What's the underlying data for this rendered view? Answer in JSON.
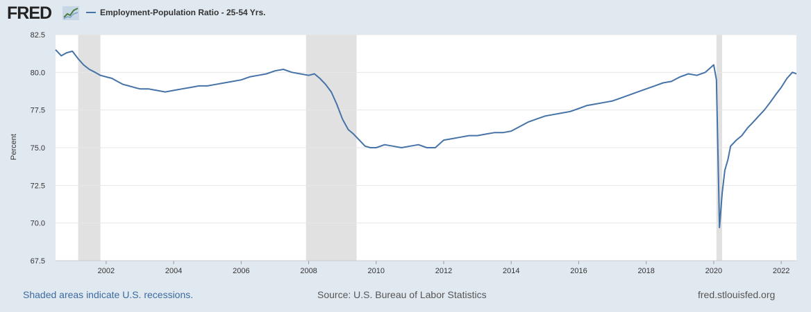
{
  "header": {
    "logo_text": "FRED",
    "logo_icon": "fred-chart-icon",
    "series_label": "Employment-Population Ratio - 25-54 Yrs."
  },
  "footer": {
    "note": "Shaded areas indicate U.S. recessions.",
    "source": "Source: U.S. Bureau of Labor Statistics",
    "site": "fred.stlouisfed.org"
  },
  "colors": {
    "background": "#e1e9f0",
    "plot_background": "#ffffff",
    "line": "#4572a7",
    "recession": "#e1e1e1",
    "grid": "#e6e6e6"
  },
  "chart_data": {
    "type": "line",
    "title": "",
    "xlabel": "",
    "ylabel": "Percent",
    "xlim": [
      2000.5,
      2022.45
    ],
    "ylim": [
      67.5,
      82.5
    ],
    "y_ticks": [
      "67.5",
      "70.0",
      "72.5",
      "75.0",
      "77.5",
      "80.0",
      "82.5"
    ],
    "x_ticks": [
      "2002",
      "2004",
      "2006",
      "2008",
      "2010",
      "2012",
      "2014",
      "2016",
      "2018",
      "2020",
      "2022"
    ],
    "grid": true,
    "legend": "top-left",
    "recessions": [
      [
        2001.17,
        2001.83
      ],
      [
        2007.92,
        2009.42
      ],
      [
        2020.08,
        2020.25
      ]
    ],
    "series": [
      {
        "name": "Employment-Population Ratio - 25-54 Yrs.",
        "x": [
          2000.5,
          2000.67,
          2000.83,
          2001.0,
          2001.17,
          2001.33,
          2001.5,
          2001.67,
          2001.83,
          2002.0,
          2002.17,
          2002.33,
          2002.5,
          2002.67,
          2002.83,
          2003.0,
          2003.25,
          2003.5,
          2003.75,
          2004.0,
          2004.25,
          2004.5,
          2004.75,
          2005.0,
          2005.25,
          2005.5,
          2005.75,
          2006.0,
          2006.25,
          2006.5,
          2006.75,
          2007.0,
          2007.25,
          2007.5,
          2007.75,
          2008.0,
          2008.17,
          2008.33,
          2008.5,
          2008.67,
          2008.83,
          2009.0,
          2009.17,
          2009.33,
          2009.5,
          2009.67,
          2009.83,
          2010.0,
          2010.25,
          2010.5,
          2010.75,
          2011.0,
          2011.25,
          2011.5,
          2011.75,
          2012.0,
          2012.25,
          2012.5,
          2012.75,
          2013.0,
          2013.25,
          2013.5,
          2013.75,
          2014.0,
          2014.25,
          2014.5,
          2014.75,
          2015.0,
          2015.25,
          2015.5,
          2015.75,
          2016.0,
          2016.25,
          2016.5,
          2016.75,
          2017.0,
          2017.25,
          2017.5,
          2017.75,
          2018.0,
          2018.25,
          2018.5,
          2018.75,
          2019.0,
          2019.25,
          2019.5,
          2019.75,
          2020.0,
          2020.08,
          2020.17,
          2020.25,
          2020.33,
          2020.42,
          2020.5,
          2020.67,
          2020.83,
          2021.0,
          2021.17,
          2021.33,
          2021.5,
          2021.67,
          2021.83,
          2022.0,
          2022.17,
          2022.33,
          2022.45
        ],
        "values": [
          81.5,
          81.1,
          81.3,
          81.4,
          80.9,
          80.5,
          80.2,
          80.0,
          79.8,
          79.7,
          79.6,
          79.4,
          79.2,
          79.1,
          79.0,
          78.9,
          78.9,
          78.8,
          78.7,
          78.8,
          78.9,
          79.0,
          79.1,
          79.1,
          79.2,
          79.3,
          79.4,
          79.5,
          79.7,
          79.8,
          79.9,
          80.1,
          80.2,
          80.0,
          79.9,
          79.8,
          79.9,
          79.6,
          79.2,
          78.7,
          77.9,
          76.9,
          76.2,
          75.9,
          75.5,
          75.1,
          75.0,
          75.0,
          75.2,
          75.1,
          75.0,
          75.1,
          75.2,
          75.0,
          75.0,
          75.5,
          75.6,
          75.7,
          75.8,
          75.8,
          75.9,
          76.0,
          76.0,
          76.1,
          76.4,
          76.7,
          76.9,
          77.1,
          77.2,
          77.3,
          77.4,
          77.6,
          77.8,
          77.9,
          78.0,
          78.1,
          78.3,
          78.5,
          78.7,
          78.9,
          79.1,
          79.3,
          79.4,
          79.7,
          79.9,
          79.8,
          80.0,
          80.5,
          79.5,
          69.7,
          72.0,
          73.5,
          74.2,
          75.1,
          75.5,
          75.8,
          76.3,
          76.7,
          77.1,
          77.5,
          78.0,
          78.5,
          79.0,
          79.6,
          80.0,
          79.9
        ]
      }
    ]
  }
}
